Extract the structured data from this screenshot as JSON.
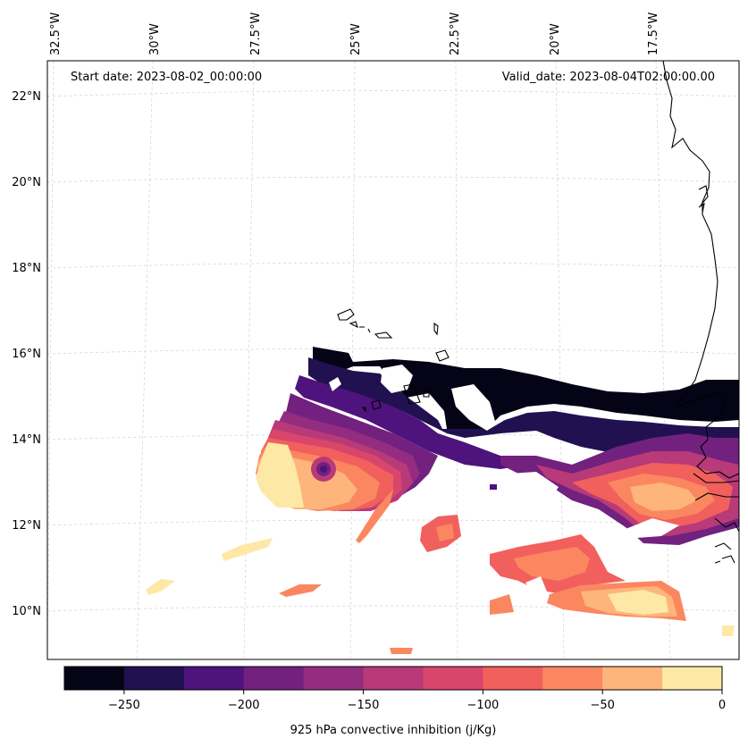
{
  "map": {
    "start_date": "Start date: 2023-08-02_00:00:00",
    "valid_date": "Valid_date: 2023-08-04T02:00:00.00",
    "lon_labels": [
      "32.5°W",
      "30°W",
      "27.5°W",
      "25°W",
      "22.5°W",
      "20°W",
      "17.5°W"
    ],
    "lat_labels": [
      "22°N",
      "20°N",
      "18°N",
      "16°N",
      "14°N",
      "12°N",
      "10°N"
    ]
  },
  "colorbar": {
    "label": "925 hPa convective inhibition (j/Kg)",
    "tick_labels": [
      "−250",
      "−200",
      "−150",
      "−100",
      "−50",
      "0"
    ],
    "colors": [
      "#050416",
      "#221150",
      "#4e137c",
      "#72217f",
      "#942c80",
      "#b93a78",
      "#d9466b",
      "#f1605d",
      "#fb8761",
      "#feb57c",
      "#fde8a6"
    ]
  }
}
